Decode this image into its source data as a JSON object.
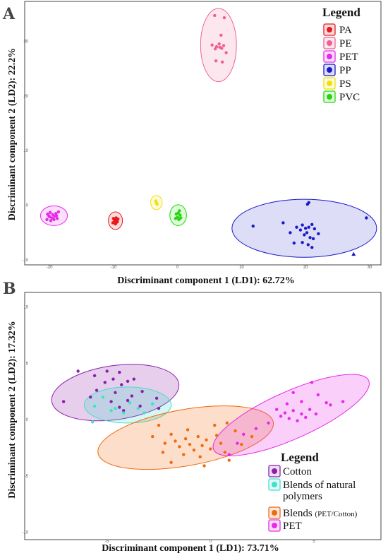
{
  "chart_data": [
    {
      "panel": "A",
      "type": "scatter",
      "xlabel": "Discriminant component 1 (LD1): 62.72%",
      "ylabel": "Discriminant component 2 (LD2): 22.2%",
      "xlim": [
        -22,
        31
      ],
      "ylim": [
        -10.5,
        36.5
      ],
      "xticks": [
        -20,
        -10,
        0,
        10,
        20,
        30
      ],
      "xtick_labels": [
        "-20",
        "-10",
        "0",
        "10",
        "20",
        "30"
      ],
      "yticks": [
        -10,
        0,
        10,
        20,
        30
      ],
      "ytick_labels": [
        "-10",
        "0",
        "10",
        "20",
        "30"
      ],
      "grid": false,
      "legend": {
        "title": "Legend",
        "position": "top-right"
      },
      "series": [
        {
          "name": "PA",
          "color": "#e8191c",
          "ellipse": {
            "cx": -9.7,
            "cy": -2.8,
            "rx": 1.1,
            "ry": 1.6,
            "angle": 0
          },
          "points": [
            [
              -10.0,
              -2.4
            ],
            [
              -9.6,
              -2.3
            ],
            [
              -9.8,
              -2.9
            ],
            [
              -9.4,
              -3.0
            ],
            [
              -10.1,
              -3.2
            ],
            [
              -9.7,
              -3.4
            ],
            [
              -9.5,
              -2.7
            ],
            [
              -9.9,
              -2.6
            ],
            [
              -9.6,
              -3.2
            ],
            [
              -9.3,
              -2.5
            ]
          ]
        },
        {
          "name": "PE",
          "color": "#f0608f",
          "ellipse": {
            "cx": 6.4,
            "cy": 29.3,
            "rx": 2.8,
            "ry": 6.7,
            "angle": 0
          },
          "points": [
            [
              5.8,
              34.7
            ],
            [
              7.3,
              34.3
            ],
            [
              6.8,
              31.1
            ],
            [
              5.4,
              29.3
            ],
            [
              6.1,
              29.0
            ],
            [
              6.5,
              29.5
            ],
            [
              6.9,
              28.7
            ],
            [
              7.2,
              29.2
            ],
            [
              6.6,
              28.9
            ],
            [
              5.9,
              28.6
            ],
            [
              7.6,
              27.9
            ],
            [
              6.0,
              26.4
            ],
            [
              7.0,
              26.2
            ]
          ]
        },
        {
          "name": "PET",
          "color": "#e62ae8",
          "ellipse": {
            "cx": -19.3,
            "cy": -1.9,
            "rx": 2.1,
            "ry": 1.8,
            "angle": 0
          },
          "points": [
            [
              -20.3,
              -1.6
            ],
            [
              -19.9,
              -1.3
            ],
            [
              -19.5,
              -1.7
            ],
            [
              -19.0,
              -1.5
            ],
            [
              -18.6,
              -1.2
            ],
            [
              -20.0,
              -2.1
            ],
            [
              -19.6,
              -2.3
            ],
            [
              -19.2,
              -2.0
            ],
            [
              -18.8,
              -2.4
            ],
            [
              -20.4,
              -2.6
            ],
            [
              -19.8,
              -2.8
            ],
            [
              -19.3,
              -2.6
            ],
            [
              -18.9,
              -1.9
            ],
            [
              -20.1,
              -1.9
            ]
          ]
        },
        {
          "name": "PP",
          "color": "#1919c9",
          "ellipse": {
            "cx": 19.8,
            "cy": -4.2,
            "rx": 11.3,
            "ry": 5.3,
            "angle": 0
          },
          "points": [
            [
              20.5,
              0.5
            ],
            [
              20.3,
              0.2
            ],
            [
              29.5,
              -2.3
            ],
            [
              16.5,
              -3.2
            ],
            [
              11.8,
              -3.8
            ],
            [
              18.6,
              -4.0
            ],
            [
              19.5,
              -3.6
            ],
            [
              20.0,
              -4.2
            ],
            [
              20.5,
              -4.0
            ],
            [
              21.0,
              -3.5
            ],
            [
              21.4,
              -4.3
            ],
            [
              20.2,
              -5.0
            ],
            [
              19.8,
              -5.4
            ],
            [
              20.7,
              -5.9
            ],
            [
              21.2,
              -6.1
            ],
            [
              19.5,
              -6.8
            ],
            [
              20.4,
              -7.2
            ],
            [
              21.0,
              -7.7
            ],
            [
              18.2,
              -6.9
            ],
            [
              17.6,
              -5.0
            ],
            [
              22.0,
              -5.2
            ],
            [
              19.2,
              -4.5
            ]
          ],
          "triangles": [
            [
              27.5,
              -8.9
            ]
          ]
        },
        {
          "name": "PS",
          "color": "#f0e00a",
          "ellipse": {
            "cx": -3.3,
            "cy": 0.5,
            "rx": 0.9,
            "ry": 1.3,
            "angle": 0
          },
          "points": [
            [
              -3.4,
              0.8
            ],
            [
              -3.2,
              0.2
            ],
            [
              -3.3,
              0.5
            ]
          ]
        },
        {
          "name": "PVC",
          "color": "#25d60b",
          "ellipse": {
            "cx": 0.1,
            "cy": -1.8,
            "rx": 1.3,
            "ry": 1.9,
            "angle": 0
          },
          "points": [
            [
              0.3,
              -1.0
            ],
            [
              -0.2,
              -1.6
            ],
            [
              0.4,
              -1.8
            ],
            [
              0.0,
              -2.2
            ],
            [
              0.2,
              -2.6
            ],
            [
              -0.3,
              -2.4
            ],
            [
              0.1,
              -1.4
            ],
            [
              0.5,
              -2.3
            ]
          ]
        }
      ]
    },
    {
      "panel": "B",
      "type": "scatter",
      "xlabel": "Discriminant component 1 (LD1): 73.71%",
      "ylabel": "Discriminant component 2 (LD2): 17.32%",
      "xlim": [
        -8.4,
        8.0
      ],
      "ylim": [
        -10.4,
        10.6
      ],
      "xticks": [
        -5,
        0,
        5
      ],
      "xtick_labels": [
        "-5",
        "0",
        "5"
      ],
      "yticks": [
        -10,
        -5,
        0,
        5,
        10
      ],
      "ytick_labels": [
        "-10",
        "-5",
        "0",
        "5",
        "10"
      ],
      "grid": false,
      "legend": {
        "title": "Legend",
        "position": "bottom-right"
      },
      "series": [
        {
          "name": "Cotton",
          "color": "#8b1fa8",
          "label_parts": [
            "Cotton"
          ],
          "ellipse": {
            "cx": -4.6,
            "cy": 2.4,
            "rx": 3.1,
            "ry": 2.4,
            "angle": -8
          },
          "points": [
            [
              -6.4,
              4.3
            ],
            [
              -5.0,
              4.3
            ],
            [
              -4.4,
              4.2
            ],
            [
              -5.6,
              3.9
            ],
            [
              -4.7,
              3.6
            ],
            [
              -4.0,
              3.4
            ],
            [
              -3.7,
              3.6
            ],
            [
              -4.3,
              3.1
            ],
            [
              -5.1,
              3.3
            ],
            [
              -5.5,
              2.6
            ],
            [
              -4.6,
              2.4
            ],
            [
              -3.8,
              2.1
            ],
            [
              -3.3,
              2.5
            ],
            [
              -2.6,
              1.9
            ],
            [
              -4.0,
              1.7
            ],
            [
              -4.8,
              1.6
            ],
            [
              -3.4,
              1.2
            ],
            [
              -4.4,
              1.1
            ],
            [
              -7.1,
              1.6
            ],
            [
              -2.5,
              1.0
            ],
            [
              -4.2,
              0.8
            ],
            [
              -5.8,
              2.0
            ]
          ]
        },
        {
          "name": "Blends of natural polymers",
          "color": "#3fe0cc",
          "label_parts": [
            "Blends of natural",
            "polymers"
          ],
          "ellipse": {
            "cx": -4.0,
            "cy": 1.3,
            "rx": 2.1,
            "ry": 1.6,
            "angle": 0
          },
          "points": [
            [
              -5.2,
              2.0
            ],
            [
              -5.6,
              1.2
            ],
            [
              -4.6,
              1.0
            ],
            [
              -3.9,
              1.5
            ],
            [
              -3.5,
              1.0
            ],
            [
              -4.2,
              0.6
            ],
            [
              -3.2,
              0.6
            ],
            [
              -5.7,
              -0.2
            ],
            [
              -4.8,
              0.8
            ],
            [
              -2.8,
              1.4
            ]
          ]
        },
        {
          "name": "Blends (PET/Cotton)",
          "color": "#f06a0f",
          "label_parts": [
            "Blends",
            "(PET/Cotton)"
          ],
          "ellipse": {
            "cx": -1.2,
            "cy": -1.6,
            "rx": 4.3,
            "ry": 2.5,
            "angle": -10
          },
          "points": [
            [
              -2.5,
              -0.5
            ],
            [
              -2.8,
              -1.5
            ],
            [
              -2.2,
              -2.1
            ],
            [
              -1.9,
              -1.3
            ],
            [
              -1.7,
              -1.9
            ],
            [
              -1.5,
              -2.4
            ],
            [
              -1.2,
              -1.7
            ],
            [
              -1.0,
              -2.2
            ],
            [
              -0.8,
              -2.7
            ],
            [
              -0.6,
              -1.5
            ],
            [
              -0.4,
              -2.3
            ],
            [
              -0.2,
              -1.8
            ],
            [
              0.0,
              -2.6
            ],
            [
              0.3,
              -1.4
            ],
            [
              0.5,
              -2.1
            ],
            [
              0.7,
              -2.9
            ],
            [
              -1.3,
              -3.1
            ],
            [
              -0.5,
              -3.3
            ],
            [
              0.9,
              -3.6
            ],
            [
              1.5,
              -2.2
            ],
            [
              2.0,
              -1.5
            ],
            [
              0.2,
              -0.5
            ],
            [
              -1.1,
              -0.9
            ],
            [
              -0.3,
              -4.1
            ],
            [
              -1.9,
              -3.8
            ],
            [
              1.2,
              -1.0
            ],
            [
              -2.3,
              -2.9
            ],
            [
              0.8,
              -0.3
            ]
          ]
        },
        {
          "name": "PET",
          "color": "#e62ae8",
          "label_parts": [
            "PET"
          ],
          "ellipse": {
            "cx": 3.9,
            "cy": 0.4,
            "rx": 4.1,
            "ry": 2.1,
            "angle": -24
          },
          "points": [
            [
              4.9,
              3.3
            ],
            [
              4.0,
              2.4
            ],
            [
              5.2,
              2.2
            ],
            [
              5.6,
              1.5
            ],
            [
              4.4,
              1.6
            ],
            [
              3.7,
              1.4
            ],
            [
              3.2,
              0.9
            ],
            [
              3.6,
              0.6
            ],
            [
              4.0,
              0.8
            ],
            [
              4.4,
              0.5
            ],
            [
              4.8,
              0.9
            ],
            [
              5.1,
              0.5
            ],
            [
              3.4,
              0.3
            ],
            [
              3.8,
              0.1
            ],
            [
              4.2,
              -0.1
            ],
            [
              2.8,
              -0.3
            ],
            [
              2.2,
              -0.8
            ],
            [
              1.6,
              -1.3
            ],
            [
              1.3,
              -2.1
            ],
            [
              0.9,
              -3.1
            ],
            [
              5.8,
              1.3
            ],
            [
              6.4,
              1.6
            ],
            [
              4.6,
              0.2
            ]
          ]
        }
      ]
    }
  ]
}
